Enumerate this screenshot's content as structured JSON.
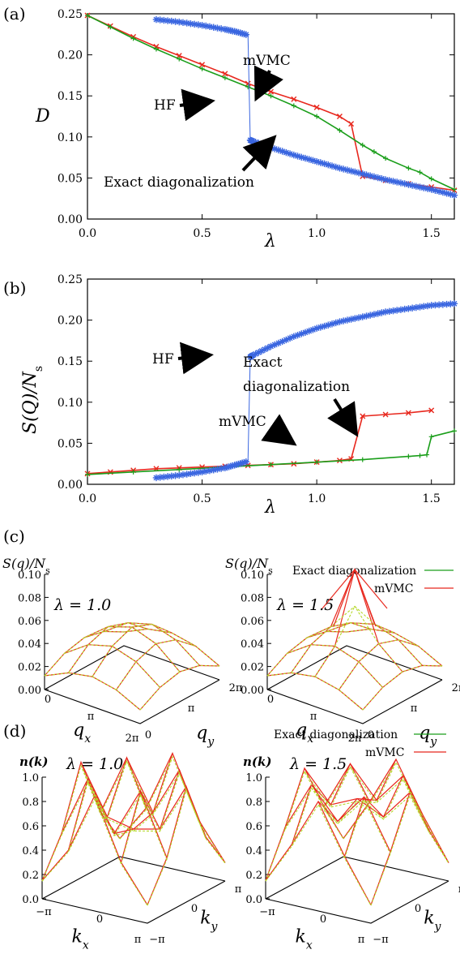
{
  "panels": {
    "a": {
      "label": "(a)",
      "chart_data": {
        "type": "line",
        "xlabel": "λ",
        "ylabel": "D",
        "xlim": [
          0,
          1.6
        ],
        "ylim": [
          0,
          0.25
        ],
        "xticks": [
          "0.0",
          "0.5",
          "1.0",
          "1.5"
        ],
        "yticks": [
          "0.00",
          "0.05",
          "0.10",
          "0.15",
          "0.20",
          "0.25"
        ],
        "series": [
          {
            "name": "mVMC",
            "color": "#e8281e",
            "x": [
              0,
              0.1,
              0.2,
              0.3,
              0.4,
              0.5,
              0.6,
              0.7,
              0.8,
              0.9,
              1.0,
              1.1,
              1.15,
              1.2,
              1.3,
              1.4,
              1.5,
              1.6
            ],
            "y": [
              0.248,
              0.235,
              0.222,
              0.21,
              0.199,
              0.188,
              0.177,
              0.165,
              0.155,
              0.146,
              0.136,
              0.125,
              0.116,
              0.052,
              0.047,
              0.043,
              0.039,
              0.035
            ]
          },
          {
            "name": "Exact diagonalization",
            "color": "#1a9e1a",
            "x": [
              0,
              0.1,
              0.2,
              0.3,
              0.4,
              0.5,
              0.6,
              0.7,
              0.8,
              0.9,
              1.0,
              1.1,
              1.2,
              1.25,
              1.3,
              1.4,
              1.45,
              1.5,
              1.6
            ],
            "y": [
              0.248,
              0.234,
              0.22,
              0.207,
              0.195,
              0.183,
              0.172,
              0.161,
              0.15,
              0.138,
              0.125,
              0.108,
              0.09,
              0.082,
              0.074,
              0.062,
              0.057,
              0.049,
              0.036
            ]
          },
          {
            "name": "HF",
            "color": "#3a66e0",
            "x": [
              0.3,
              0.4,
              0.5,
              0.6,
              0.65,
              0.7,
              0.71,
              0.72,
              0.8,
              0.9,
              1.0,
              1.1,
              1.2,
              1.3,
              1.4,
              1.5,
              1.6
            ],
            "y": [
              0.243,
              0.24,
              0.236,
              0.231,
              0.228,
              0.224,
              0.096,
              0.095,
              0.087,
              0.078,
              0.07,
              0.062,
              0.055,
              0.048,
              0.042,
              0.036,
              0.029
            ]
          }
        ],
        "annotations": [
          "mVMC",
          "HF",
          "Exact diagonalization"
        ]
      }
    },
    "b": {
      "label": "(b)",
      "chart_data": {
        "type": "line",
        "xlabel": "λ",
        "ylabel": "S(Q)/N",
        "ylabel_sub": "s",
        "xlim": [
          0,
          1.6
        ],
        "ylim": [
          0,
          0.25
        ],
        "xticks": [
          "0.0",
          "0.5",
          "1.0",
          "1.5"
        ],
        "yticks": [
          "0.00",
          "0.05",
          "0.10",
          "0.15",
          "0.20",
          "0.25"
        ],
        "series": [
          {
            "name": "mVMC",
            "color": "#e8281e",
            "x": [
              0,
              0.1,
              0.2,
              0.3,
              0.4,
              0.5,
              0.6,
              0.7,
              0.8,
              0.9,
              1.0,
              1.1,
              1.15,
              1.2,
              1.3,
              1.4,
              1.5
            ],
            "y": [
              0.013,
              0.015,
              0.017,
              0.019,
              0.02,
              0.021,
              0.022,
              0.023,
              0.024,
              0.025,
              0.027,
              0.029,
              0.031,
              0.083,
              0.085,
              0.087,
              0.09
            ]
          },
          {
            "name": "Exact diagonalization",
            "color": "#1a9e1a",
            "x": [
              0,
              0.2,
              0.4,
              0.6,
              0.8,
              1.0,
              1.2,
              1.4,
              1.45,
              1.48,
              1.5,
              1.6
            ],
            "y": [
              0.012,
              0.015,
              0.018,
              0.021,
              0.024,
              0.027,
              0.03,
              0.034,
              0.035,
              0.036,
              0.058,
              0.065
            ]
          },
          {
            "name": "HF",
            "color": "#3a66e0",
            "x": [
              0.3,
              0.4,
              0.5,
              0.6,
              0.65,
              0.7,
              0.71,
              0.72,
              0.8,
              0.9,
              1.0,
              1.1,
              1.2,
              1.3,
              1.4,
              1.5,
              1.6
            ],
            "y": [
              0.008,
              0.011,
              0.015,
              0.02,
              0.024,
              0.028,
              0.155,
              0.157,
              0.168,
              0.18,
              0.19,
              0.198,
              0.204,
              0.21,
              0.214,
              0.218,
              0.22
            ]
          }
        ],
        "annotations": [
          "HF",
          "Exact",
          "diagonalization",
          "mVMC"
        ]
      }
    },
    "c": {
      "label": "(c)",
      "legend": [
        {
          "name": "Exact diagonalization",
          "color": "#1a9e1a"
        },
        {
          "name": "mVMC",
          "color": "#e8281e"
        }
      ],
      "zlabel": "S(q)/N",
      "zlabel_sub": "s",
      "zticks": [
        "0.10",
        "0.08",
        "0.06",
        "0.04",
        "0.02",
        "0.00"
      ],
      "qx_label": "q",
      "qx_sub": "x",
      "qy_label": "q",
      "qy_sub": "y",
      "ticks": {
        "zero_left": "0",
        "pi_x": "π",
        "twopi_x": "2π",
        "zero_y": "0",
        "pi_y": "π",
        "twopi_y": "2π"
      },
      "subplots": [
        {
          "lambda": "λ = 1.0",
          "peak": 0.045
        },
        {
          "lambda": "λ = 1.5",
          "peak": 0.1
        }
      ]
    },
    "d": {
      "label": "(d)",
      "legend": [
        {
          "name": "Exact diagonalization",
          "color": "#1a9e1a"
        },
        {
          "name": "mVMC",
          "color": "#e8281e"
        }
      ],
      "zlabel": "n(k)",
      "zticks": [
        "1.0",
        "0.8",
        "0.6",
        "0.4",
        "0.2",
        "0.0"
      ],
      "kx_label": "k",
      "kx_sub": "x",
      "ky_label": "k",
      "ky_sub": "y",
      "ticks": {
        "neg_pi_x": "−π",
        "zero_x": "0",
        "pi_x": "π",
        "neg_pi_y": "−π",
        "zero_y": "0",
        "pi_y": "π"
      },
      "subplots": [
        {
          "lambda": "λ = 1.0"
        },
        {
          "lambda": "λ = 1.5"
        }
      ]
    }
  }
}
